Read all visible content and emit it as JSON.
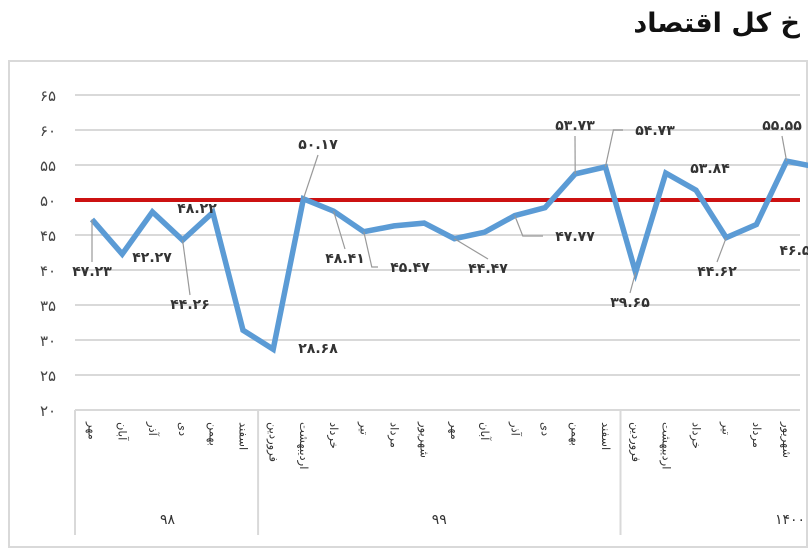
{
  "chart_data": {
    "type": "line",
    "title": "خ کل اقتصاد",
    "ylim": [
      20,
      65
    ],
    "yticks": [
      "۲۰",
      "۲۵",
      "۳۰",
      "۳۵",
      "۴۰",
      "۴۵",
      "۵۰",
      "۵۵",
      "۶۰",
      "۶۵"
    ],
    "grid": true,
    "categories": [
      "مهر",
      "آبان",
      "آذر",
      "دی",
      "بهمن",
      "اسفند",
      "فروردین",
      "اردیبهشت",
      "خرداد",
      "تیر",
      "مرداد",
      "شهریور",
      "مهر",
      "آبان",
      "آذر",
      "دی",
      "بهمن",
      "اسفند",
      "فروردین",
      "اردیبهشت",
      "خرداد",
      "تیر",
      "مرداد",
      "شهریور",
      ""
    ],
    "groups": [
      {
        "label": "۹۸",
        "count": 6
      },
      {
        "label": "۹۹",
        "count": 12
      },
      {
        "label": "۱۴۰۰",
        "count": 7
      }
    ],
    "values": [
      47.23,
      42.27,
      48.3,
      44.26,
      48.22,
      31.4,
      28.68,
      50.17,
      48.41,
      45.47,
      46.3,
      46.7,
      44.47,
      45.4,
      47.77,
      48.9,
      53.73,
      54.73,
      39.65,
      53.84,
      51.4,
      44.62,
      46.5,
      55.55,
      54.7
    ],
    "series_color": "#5b9bd5",
    "threshold": {
      "value": 50,
      "color": "#cc1111"
    },
    "data_labels": [
      {
        "index": 0,
        "text": "۴۷.۲۳"
      },
      {
        "index": 1,
        "text": "۴۲.۲۷"
      },
      {
        "index": 3,
        "text": "۴۴.۲۶"
      },
      {
        "index": 4,
        "text": "۴۸.۲۲"
      },
      {
        "index": 6,
        "text": "۲۸.۶۸"
      },
      {
        "index": 7,
        "text": "۵۰.۱۷"
      },
      {
        "index": 8,
        "text": "۴۸.۴۱"
      },
      {
        "index": 9,
        "text": "۴۵.۴۷"
      },
      {
        "index": 12,
        "text": "۴۴.۴۷"
      },
      {
        "index": 14,
        "text": "۴۷.۷۷"
      },
      {
        "index": 16,
        "text": "۵۳.۷۳"
      },
      {
        "index": 17,
        "text": "۵۴.۷۳"
      },
      {
        "index": 18,
        "text": "۳۹.۶۵"
      },
      {
        "index": 19,
        "text": "۵۳.۸۴"
      },
      {
        "index": 21,
        "text": "۴۴.۶۲"
      },
      {
        "index": 22,
        "text": "۴۶.۵"
      },
      {
        "index": 23,
        "text": "۵۵.۵۵"
      }
    ]
  }
}
